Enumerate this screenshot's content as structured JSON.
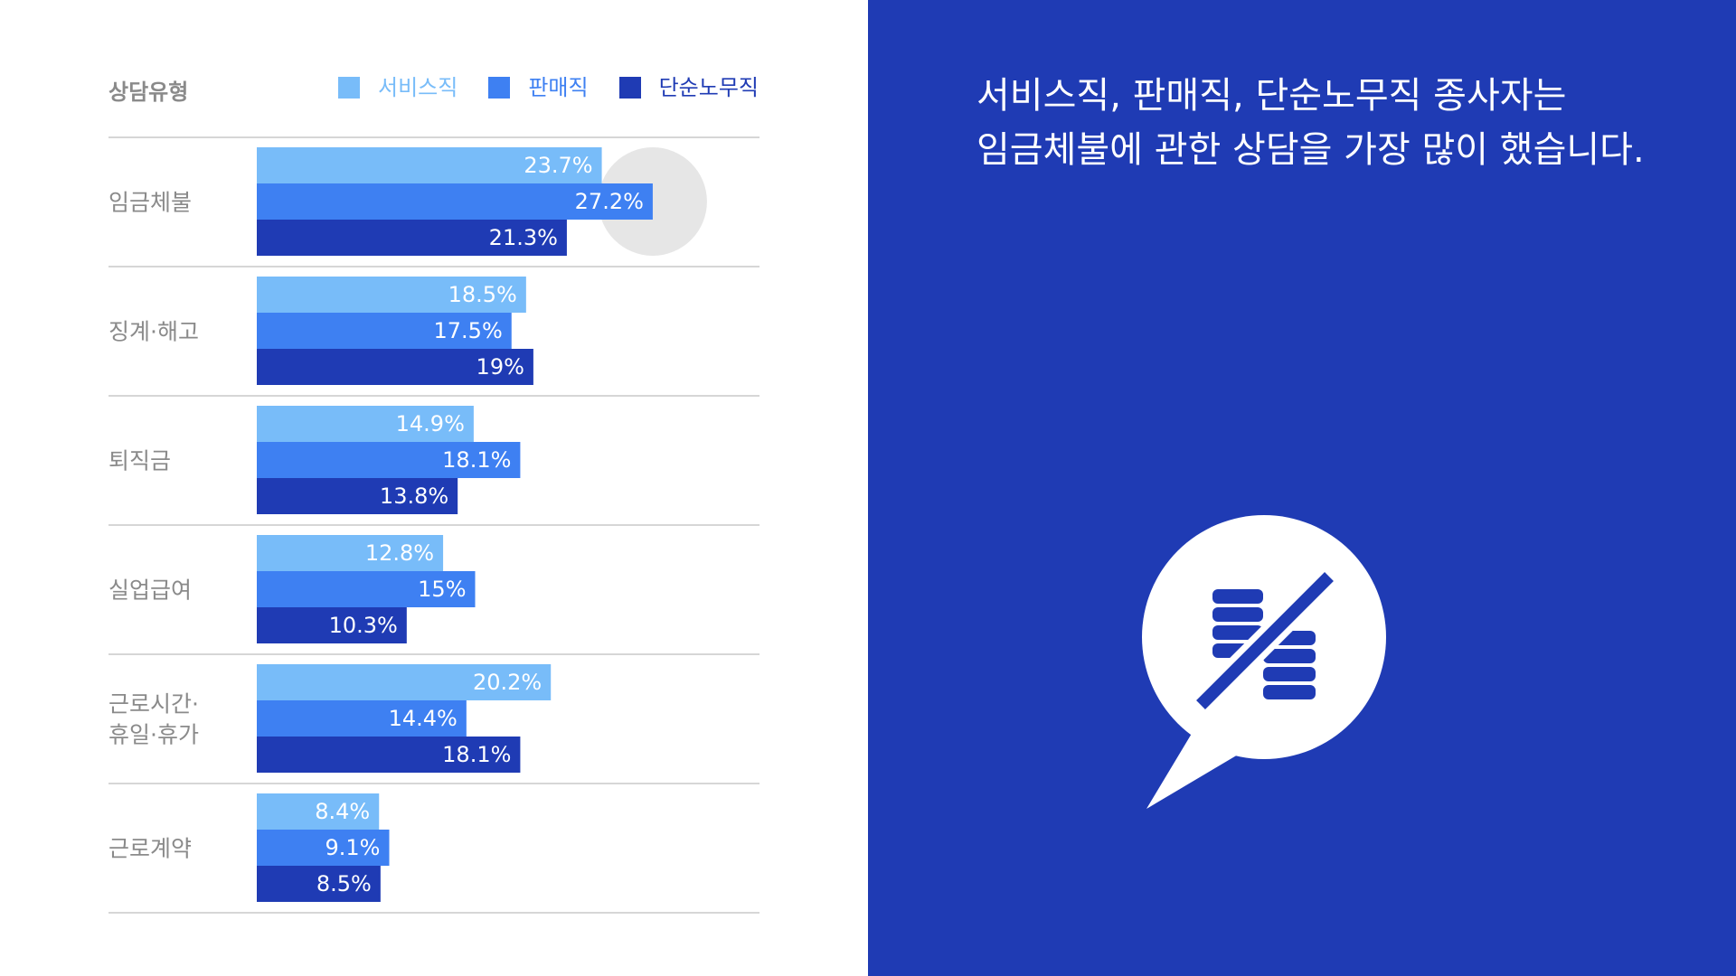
{
  "header": {
    "category_label": "상담유형"
  },
  "legend": [
    {
      "label": "서비스직",
      "color": "#78bcf9"
    },
    {
      "label": "판매직",
      "color": "#3e80f2"
    },
    {
      "label": "단순노무직",
      "color": "#1f3bb4"
    }
  ],
  "chart_data": {
    "type": "bar",
    "orientation": "horizontal",
    "grouped": true,
    "categories": [
      [
        "임금체불"
      ],
      [
        "징계·해고"
      ],
      [
        "퇴직금"
      ],
      [
        "실업급여"
      ],
      [
        "근로시간·",
        "휴일·휴가"
      ],
      [
        "근로계약"
      ]
    ],
    "series": [
      {
        "name": "서비스직",
        "color": "#78bcf9",
        "values": [
          23.7,
          18.5,
          14.9,
          12.8,
          20.2,
          8.4
        ],
        "labels": [
          "23.7%",
          "18.5%",
          "14.9%",
          "12.8%",
          "20.2%",
          "8.4%"
        ]
      },
      {
        "name": "판매직",
        "color": "#3e80f2",
        "values": [
          27.2,
          17.5,
          18.1,
          15,
          14.4,
          9.1
        ],
        "labels": [
          "27.2%",
          "17.5%",
          "18.1%",
          "15%",
          "14.4%",
          "9.1%"
        ]
      },
      {
        "name": "단순노무직",
        "color": "#1f3bb4",
        "values": [
          21.3,
          19,
          13.8,
          10.3,
          18.1,
          8.5
        ],
        "labels": [
          "21.3%",
          "19%",
          "13.8%",
          "10.3%",
          "18.1%",
          "8.5%"
        ]
      }
    ],
    "xlim": [
      0,
      30
    ],
    "highlight": {
      "category_index": 0,
      "series_index": 1,
      "shape": "circle",
      "color": "#e6e6e6"
    },
    "label_color": "#ffffff",
    "category_label_color": "#8a8a8a",
    "divider_color": "#c8c8c8",
    "grid": false,
    "legend_position": "top"
  },
  "headline": {
    "lines": [
      "서비스직, 판매직, 단순노무직 종사자는",
      "임금체불에 관한 상담을 가장 많이 했습니다."
    ]
  },
  "icon": {
    "name": "unpaid-wages-speech-bubble-icon",
    "color": "#ffffff"
  },
  "colors": {
    "background_left": "#ffffff",
    "background_right": "#1f3bb4",
    "accent": "#1f3bb4"
  }
}
